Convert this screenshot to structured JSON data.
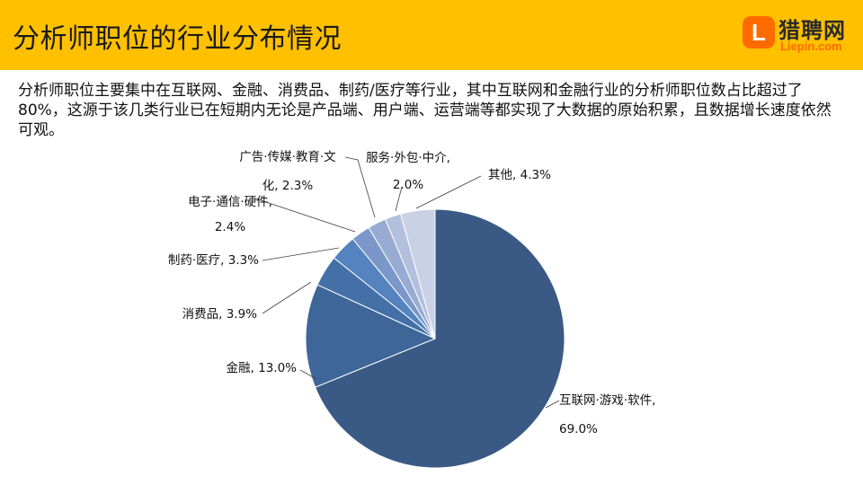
{
  "header": {
    "title": "分析师职位的行业分布情况",
    "logo_mark": "L",
    "logo_cn": "猎聘网",
    "logo_en": "Liepin.com",
    "bg_color": "#FFC000"
  },
  "description": "分析师职位主要集中在互联网、金融、消费品、制药/医疗等行业，其中互联网和金融行业的分析师职位数占比超过了80%，这源于该几类行业已在短期内无论是产品端、用户端、运营端等都实现了大数据的原始积累，且数据增长速度依然可观。",
  "chart_data": {
    "type": "pie",
    "title": "",
    "start_angle_deg": 0,
    "direction": "clockwise",
    "slices": [
      {
        "label": [
          "互联网·游戏·软件,",
          "69.0%"
        ],
        "value": 69.0,
        "color": "#3A5A85"
      },
      {
        "label": [
          "金融, 13.0%"
        ],
        "value": 13.0,
        "color": "#3F6699"
      },
      {
        "label": [
          "消费品, 3.9%"
        ],
        "value": 3.9,
        "color": "#4470A8"
      },
      {
        "label": [
          "制药·医疗, 3.3%"
        ],
        "value": 3.3,
        "color": "#5483BF"
      },
      {
        "label": [
          "电子·通信·硬件,",
          "2.4%"
        ],
        "value": 2.4,
        "color": "#7B97C9"
      },
      {
        "label": [
          "广告·传媒·教育·文",
          "化, 2.3%"
        ],
        "value": 2.3,
        "color": "#98ABD2"
      },
      {
        "label": [
          "服务·外包·中介,",
          "2.0%"
        ],
        "value": 2.0,
        "color": "#B3C0DD"
      },
      {
        "label": [
          "其他, 4.3%"
        ],
        "value": 4.3,
        "color": "#C9D1E5"
      }
    ]
  }
}
